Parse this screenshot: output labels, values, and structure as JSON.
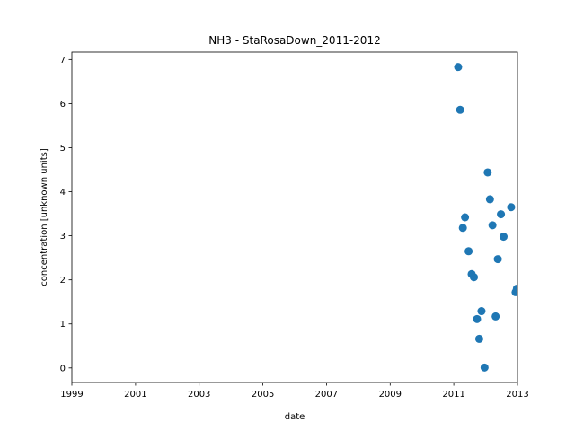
{
  "chart_data": {
    "type": "scatter",
    "title": "NH3 - StaRosaDown_2011-2012",
    "xlabel": "date",
    "ylabel": "concentration [unknown units]",
    "xlim": [
      "1999-01-01",
      "2013-01-01"
    ],
    "ylim": [
      -0.33,
      7.17
    ],
    "x_ticks": [
      "1999",
      "2001",
      "2003",
      "2005",
      "2007",
      "2009",
      "2011",
      "2013"
    ],
    "y_ticks": [
      "0",
      "1",
      "2",
      "3",
      "4",
      "5",
      "6",
      "7"
    ],
    "grid": false,
    "marker_color": "#1f77b4",
    "points": [
      {
        "x": "2011-02-20",
        "y": 6.83
      },
      {
        "x": "2011-03-15",
        "y": 5.86
      },
      {
        "x": "2011-04-15",
        "y": 3.18
      },
      {
        "x": "2011-05-10",
        "y": 3.42
      },
      {
        "x": "2011-06-20",
        "y": 2.65
      },
      {
        "x": "2011-07-25",
        "y": 2.13
      },
      {
        "x": "2011-08-20",
        "y": 2.06
      },
      {
        "x": "2011-09-25",
        "y": 1.11
      },
      {
        "x": "2011-10-20",
        "y": 0.66
      },
      {
        "x": "2011-11-15",
        "y": 1.29
      },
      {
        "x": "2011-12-20",
        "y": 0.01
      },
      {
        "x": "2012-01-25",
        "y": 4.44
      },
      {
        "x": "2012-02-20",
        "y": 3.83
      },
      {
        "x": "2012-03-20",
        "y": 3.24
      },
      {
        "x": "2012-04-25",
        "y": 1.17
      },
      {
        "x": "2012-05-20",
        "y": 2.47
      },
      {
        "x": "2012-06-25",
        "y": 3.49
      },
      {
        "x": "2012-07-25",
        "y": 2.98
      },
      {
        "x": "2012-10-20",
        "y": 3.65
      },
      {
        "x": "2012-12-10",
        "y": 1.72
      },
      {
        "x": "2012-12-25",
        "y": 1.8
      }
    ]
  }
}
